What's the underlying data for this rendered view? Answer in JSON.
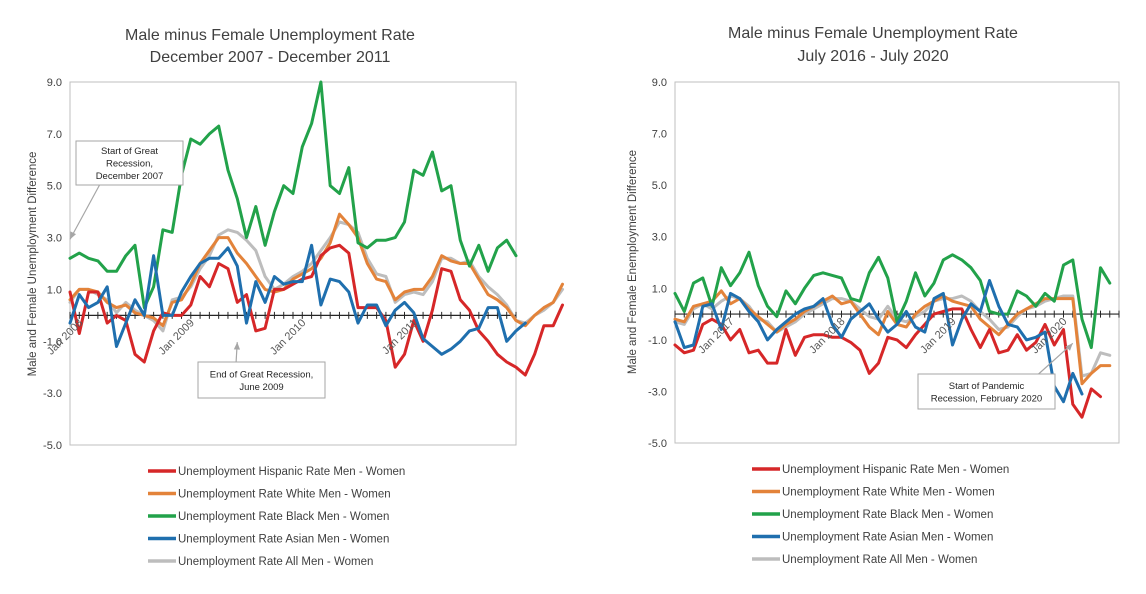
{
  "colors": {
    "hispanic": "#d62728",
    "white": "#e3833a",
    "black": "#22a24a",
    "asian": "#1f6fae",
    "all": "#bdbdbd"
  },
  "chart_data": [
    {
      "type": "line",
      "title": [
        "Male minus Female Unemployment Rate",
        "December 2007 - December 2011"
      ],
      "ylabel": "Male and Female Unemployment Difference",
      "ylim": [
        -5.0,
        9.0
      ],
      "yticks": [
        "9.0",
        "7.0",
        "5.0",
        "3.0",
        "1.0",
        "-1.0",
        "-3.0",
        "-5.0"
      ],
      "x_start": "2007-12",
      "x_end": "2011-12",
      "xtick_labels": [
        {
          "label": "Jan 2008",
          "month": "2008-01"
        },
        {
          "label": "Jan 2009",
          "month": "2009-01"
        },
        {
          "label": "Jan 2010",
          "month": "2010-01"
        },
        {
          "label": "Jan 2011",
          "month": "2011-01"
        }
      ],
      "zero_line": 0,
      "series": [
        {
          "name": "Unemployment Rate All Men - Women",
          "key": "all",
          "values": [
            0.5,
            1.0,
            1.0,
            0.8,
            0.6,
            0.1,
            0.5,
            0.2,
            0.0,
            -0.2,
            -0.6,
            0.6,
            0.7,
            1.1,
            1.8,
            2.3,
            3.1,
            3.3,
            3.2,
            2.9,
            2.5,
            1.5,
            1.0,
            1.2,
            1.5,
            1.7,
            2.0,
            2.5,
            3.0,
            3.6,
            3.5,
            3.2,
            2.2,
            1.6,
            1.5,
            0.5,
            0.8,
            0.9,
            0.8,
            1.3,
            2.2,
            2.2,
            2.0,
            2.1,
            1.5,
            1.1,
            0.8,
            0.4,
            -0.2,
            -0.3,
            0.0,
            0.2,
            0.5,
            1.0
          ]
        },
        {
          "name": "Unemployment Rate White Men - Women",
          "key": "white",
          "values": [
            0.6,
            1.0,
            1.0,
            0.9,
            0.5,
            0.3,
            0.4,
            0.1,
            0.0,
            -0.1,
            -0.4,
            0.5,
            0.6,
            1.2,
            2.0,
            2.5,
            3.0,
            3.0,
            2.4,
            2.0,
            1.5,
            1.0,
            0.9,
            1.0,
            1.4,
            1.6,
            1.8,
            2.2,
            2.8,
            3.9,
            3.5,
            3.0,
            2.0,
            1.4,
            1.3,
            0.6,
            0.9,
            1.0,
            1.0,
            1.5,
            2.3,
            2.1,
            2.0,
            2.0,
            1.4,
            0.8,
            0.6,
            0.3,
            -0.2,
            -0.4,
            0.0,
            0.3,
            0.5,
            1.2
          ]
        },
        {
          "name": "Unemployment Hispanic Rate Men - Women",
          "key": "hispanic",
          "values": [
            0.9,
            -0.7,
            0.9,
            0.9,
            -0.3,
            0.0,
            -0.2,
            -1.5,
            -1.8,
            -0.6,
            0.1,
            0.0,
            0.0,
            0.4,
            1.5,
            1.1,
            2.0,
            1.8,
            0.5,
            0.8,
            -0.6,
            -0.5,
            1.0,
            1.0,
            1.2,
            1.4,
            1.5,
            2.3,
            2.6,
            2.7,
            2.4,
            0.3,
            0.3,
            0.3,
            -0.2,
            -2.0,
            -1.5,
            -0.2,
            -1.0,
            0.2,
            1.8,
            1.7,
            0.6,
            0.2,
            -0.6,
            -1.0,
            -1.5,
            -1.8,
            -2.0,
            -2.3,
            -1.5,
            -0.4,
            -0.4,
            0.4
          ]
        },
        {
          "name": "Unemployment Rate Black Men - Women",
          "key": "black",
          "values": [
            2.2,
            2.4,
            2.2,
            2.1,
            1.7,
            1.7,
            2.3,
            2.7,
            0.3,
            1.1,
            3.3,
            3.2,
            5.4,
            6.8,
            6.6,
            7.0,
            7.3,
            5.6,
            4.5,
            3.0,
            4.2,
            2.7,
            4.0,
            5.0,
            4.7,
            6.5,
            7.4,
            9.0,
            5.0,
            4.7,
            5.7,
            2.8,
            2.6,
            2.9,
            2.9,
            3.0,
            3.6,
            5.6,
            5.4,
            6.3,
            4.8,
            5.0,
            2.9,
            1.9,
            2.7,
            1.7,
            2.6,
            2.9,
            2.3
          ]
        },
        {
          "name": "Unemployment Rate Asian Men - Women",
          "key": "asian",
          "values": [
            -0.3,
            0.8,
            0.3,
            0.5,
            1.1,
            -1.2,
            -0.3,
            0.6,
            0.0,
            2.3,
            0.0,
            0.0,
            0.9,
            1.5,
            2.0,
            2.2,
            2.2,
            2.6,
            1.9,
            -0.3,
            1.3,
            0.5,
            1.5,
            1.2,
            1.3,
            1.3,
            2.7,
            0.4,
            1.4,
            1.3,
            0.9,
            -0.3,
            0.4,
            0.4,
            -0.4,
            0.2,
            0.5,
            0.1,
            -0.9,
            -1.2,
            -1.5,
            -1.3,
            -1.0,
            -0.6,
            -0.5,
            0.3,
            0.3,
            -1.0,
            -0.6,
            -0.3
          ]
        }
      ],
      "legend": [
        {
          "key": "hispanic",
          "label": "Unemployment Hispanic Rate Men - Women"
        },
        {
          "key": "white",
          "label": "Unemployment Rate White Men - Women"
        },
        {
          "key": "black",
          "label": "Unemployment Rate Black Men - Women"
        },
        {
          "key": "asian",
          "label": "Unemployment Rate Asian Men - Women"
        },
        {
          "key": "all",
          "label": "Unemployment Rate All Men - Women"
        }
      ],
      "annotations": [
        {
          "lines": [
            "Start of Great",
            "Recession,",
            "December 2007"
          ],
          "target_month": "2007-12",
          "target_value": 2.7
        },
        {
          "lines": [
            "End of Great Recession,",
            "June 2009"
          ],
          "target_month": "2009-06",
          "target_value": -0.8
        }
      ]
    },
    {
      "type": "line",
      "title": [
        "Male minus Female Unemployment Rate",
        "July 2016 - July 2020"
      ],
      "ylabel": "Male and Female  Enemployment Difference",
      "ylim": [
        -5.0,
        9.0
      ],
      "yticks": [
        "9.0",
        "7.0",
        "5.0",
        "3.0",
        "1.0",
        "-1.0",
        "-3.0",
        "-5.0"
      ],
      "x_start": "2016-07",
      "x_end": "2020-07",
      "xtick_labels": [
        {
          "label": "Jan 2017",
          "month": "2017-01"
        },
        {
          "label": "Jan 2018",
          "month": "2018-01"
        },
        {
          "label": "Jan 2019",
          "month": "2019-01"
        },
        {
          "label": "Jan 2020",
          "month": "2020-01"
        }
      ],
      "zero_line": 0,
      "series": [
        {
          "name": "Unemployment Rate All Men - Women",
          "key": "all",
          "values": [
            -0.3,
            -0.4,
            0.2,
            0.4,
            0.2,
            0.5,
            0.7,
            0.6,
            0.3,
            -0.2,
            -0.3,
            -0.7,
            -0.5,
            -0.3,
            0.0,
            0.2,
            0.4,
            0.6,
            0.6,
            0.5,
            0.2,
            -0.1,
            -0.2,
            0.3,
            -0.2,
            -0.3,
            -0.1,
            0.1,
            0.5,
            0.6,
            0.6,
            0.7,
            0.5,
            0.1,
            -0.2,
            -0.6,
            -0.5,
            -0.1,
            0.2,
            0.3,
            0.5,
            0.6,
            0.7,
            0.7,
            -2.4,
            -2.3,
            -1.5,
            -1.6
          ]
        },
        {
          "name": "Unemployment Rate White Men - Women",
          "key": "white",
          "values": [
            -0.2,
            -0.3,
            0.3,
            0.4,
            0.5,
            0.9,
            0.4,
            0.6,
            0.2,
            -0.1,
            -0.4,
            -0.7,
            -0.4,
            -0.2,
            0.1,
            0.3,
            0.5,
            0.7,
            0.4,
            0.5,
            0.0,
            -0.5,
            -0.8,
            0.1,
            -0.4,
            -0.5,
            0.0,
            0.3,
            0.5,
            0.7,
            0.5,
            0.4,
            0.3,
            -0.2,
            -0.5,
            -0.8,
            -0.4,
            0.0,
            0.2,
            0.4,
            0.6,
            0.6,
            0.6,
            0.6,
            -2.7,
            -2.3,
            -2.0,
            -2.0
          ]
        },
        {
          "name": "Unemployment Hispanic Rate Men - Women",
          "key": "hispanic",
          "values": [
            -1.2,
            -1.5,
            -1.4,
            -0.4,
            -0.2,
            -0.4,
            -1.0,
            -0.6,
            -1.5,
            -1.4,
            -1.9,
            -1.9,
            -0.6,
            -1.6,
            -0.9,
            -0.8,
            -0.8,
            -0.9,
            -0.9,
            -1.1,
            -1.4,
            -2.3,
            -1.9,
            -0.9,
            -1.0,
            -1.3,
            -0.8,
            -0.4,
            0.0,
            0.1,
            0.2,
            0.2,
            -0.6,
            -1.3,
            -0.6,
            -1.5,
            -1.4,
            -0.8,
            -1.4,
            -1.1,
            -0.4,
            -1.2,
            -0.6,
            -3.5,
            -4.0,
            -2.9,
            -3.2
          ]
        },
        {
          "name": "Unemployment Rate Black Men - Women",
          "key": "black",
          "values": [
            0.8,
            0.1,
            1.2,
            1.4,
            0.3,
            1.8,
            1.1,
            1.6,
            2.4,
            1.1,
            0.3,
            -0.1,
            0.9,
            0.4,
            1.0,
            1.5,
            1.6,
            1.5,
            1.4,
            0.6,
            0.5,
            1.6,
            2.2,
            1.4,
            -0.3,
            0.5,
            1.6,
            0.7,
            1.2,
            2.1,
            2.3,
            2.1,
            1.8,
            1.3,
            0.1,
            0.0,
            0.0,
            0.9,
            0.7,
            0.3,
            0.8,
            0.5,
            1.9,
            2.1,
            -0.2,
            -1.3,
            1.8,
            1.2
          ]
        },
        {
          "name": "Unemployment Rate Asian Men - Women",
          "key": "asian",
          "values": [
            -0.3,
            -1.3,
            -1.2,
            0.3,
            0.4,
            -0.6,
            0.8,
            0.6,
            0.1,
            -0.3,
            -1.0,
            -0.6,
            -0.3,
            0.0,
            0.2,
            0.3,
            0.6,
            -0.4,
            -0.9,
            -0.2,
            0.1,
            0.4,
            -0.2,
            -0.7,
            -0.4,
            0.1,
            -0.5,
            -0.7,
            0.6,
            0.8,
            -1.2,
            -0.2,
            0.4,
            0.1,
            1.3,
            0.3,
            -0.4,
            -0.5,
            -1.0,
            -0.9,
            -0.7,
            -2.8,
            -3.4,
            -2.3,
            -3.1
          ]
        }
      ],
      "legend": [
        {
          "key": "hispanic",
          "label": "Unemployment Hispanic Rate Men - Women"
        },
        {
          "key": "white",
          "label": "Unemployment Rate White Men - Women"
        },
        {
          "key": "black",
          "label": "Unemployment Rate Black Men - Women"
        },
        {
          "key": "asian",
          "label": "Unemployment Rate Asian Men - Women"
        },
        {
          "key": "all",
          "label": "Unemployment Rate All Men - Women"
        }
      ],
      "annotations": [
        {
          "lines": [
            "Start of Pandemic",
            "Recession, February 2020"
          ],
          "target_month": "2020-02",
          "target_value": -0.9
        }
      ]
    }
  ]
}
